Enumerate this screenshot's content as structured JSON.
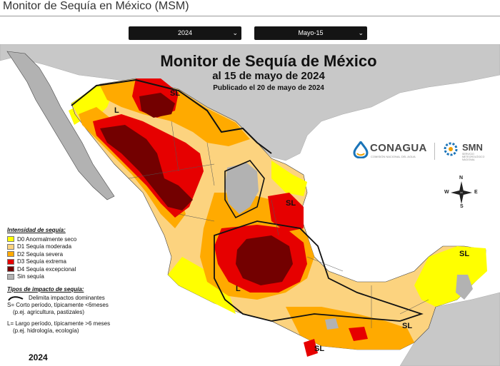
{
  "page": {
    "title": "Monitor de Sequía en México (MSM)"
  },
  "filters": {
    "year": {
      "value": "2024"
    },
    "date": {
      "value": "Mayo-15"
    }
  },
  "map": {
    "title": "Monitor de Sequía de México",
    "subtitle": "al 15 de mayo de 2024",
    "published": "Publicado el 20 de mayo de 2024",
    "year_label": "2024",
    "impact_labels": [
      "SL",
      "L",
      "SL",
      "L",
      "SL",
      "SL",
      "SL"
    ],
    "compass": {
      "n": "N",
      "s": "S",
      "e": "E",
      "w": "W"
    }
  },
  "legend": {
    "intensity_heading": "Intensidad de sequía:",
    "items": [
      {
        "code": "D0",
        "label": "D0 Anormalmente seco",
        "color": "#ffff00"
      },
      {
        "code": "D1",
        "label": "D1 Sequía moderada",
        "color": "#fcd37f"
      },
      {
        "code": "D2",
        "label": "D2 Sequía severa",
        "color": "#ffaa00"
      },
      {
        "code": "D3",
        "label": "D3 Sequía extrema",
        "color": "#e60000"
      },
      {
        "code": "D4",
        "label": "D4 Sequía excepcional",
        "color": "#730000"
      },
      {
        "code": "none",
        "label": "Sin sequía",
        "color": "#b2b2b2"
      }
    ],
    "impact_heading": "Tipos de impacto de sequía:",
    "impact_line": "Delimita impactos dominantes",
    "impact_s": "S= Corto período, típicamente <6meses",
    "impact_s_example": "(p.ej. agricultura, pastizales)",
    "impact_l": "L= Largo período, típicamente >6 meses",
    "impact_l_example": "(p.ej. hidrología, ecología)"
  },
  "logos": {
    "conagua": {
      "name": "CONAGUA",
      "tagline": "COMISIÓN NACIONAL DEL AGUA"
    },
    "smn": {
      "name": "SMN",
      "tagline": "SERVICIO METEOROLÓGICO NACIONAL"
    }
  },
  "colors": {
    "land_outside": "#c8c8c8",
    "water": "#ffffff",
    "d0": "#ffff00",
    "d1": "#fcd37f",
    "d2": "#ffaa00",
    "d3": "#e60000",
    "d4": "#730000",
    "none": "#b2b2b2"
  }
}
